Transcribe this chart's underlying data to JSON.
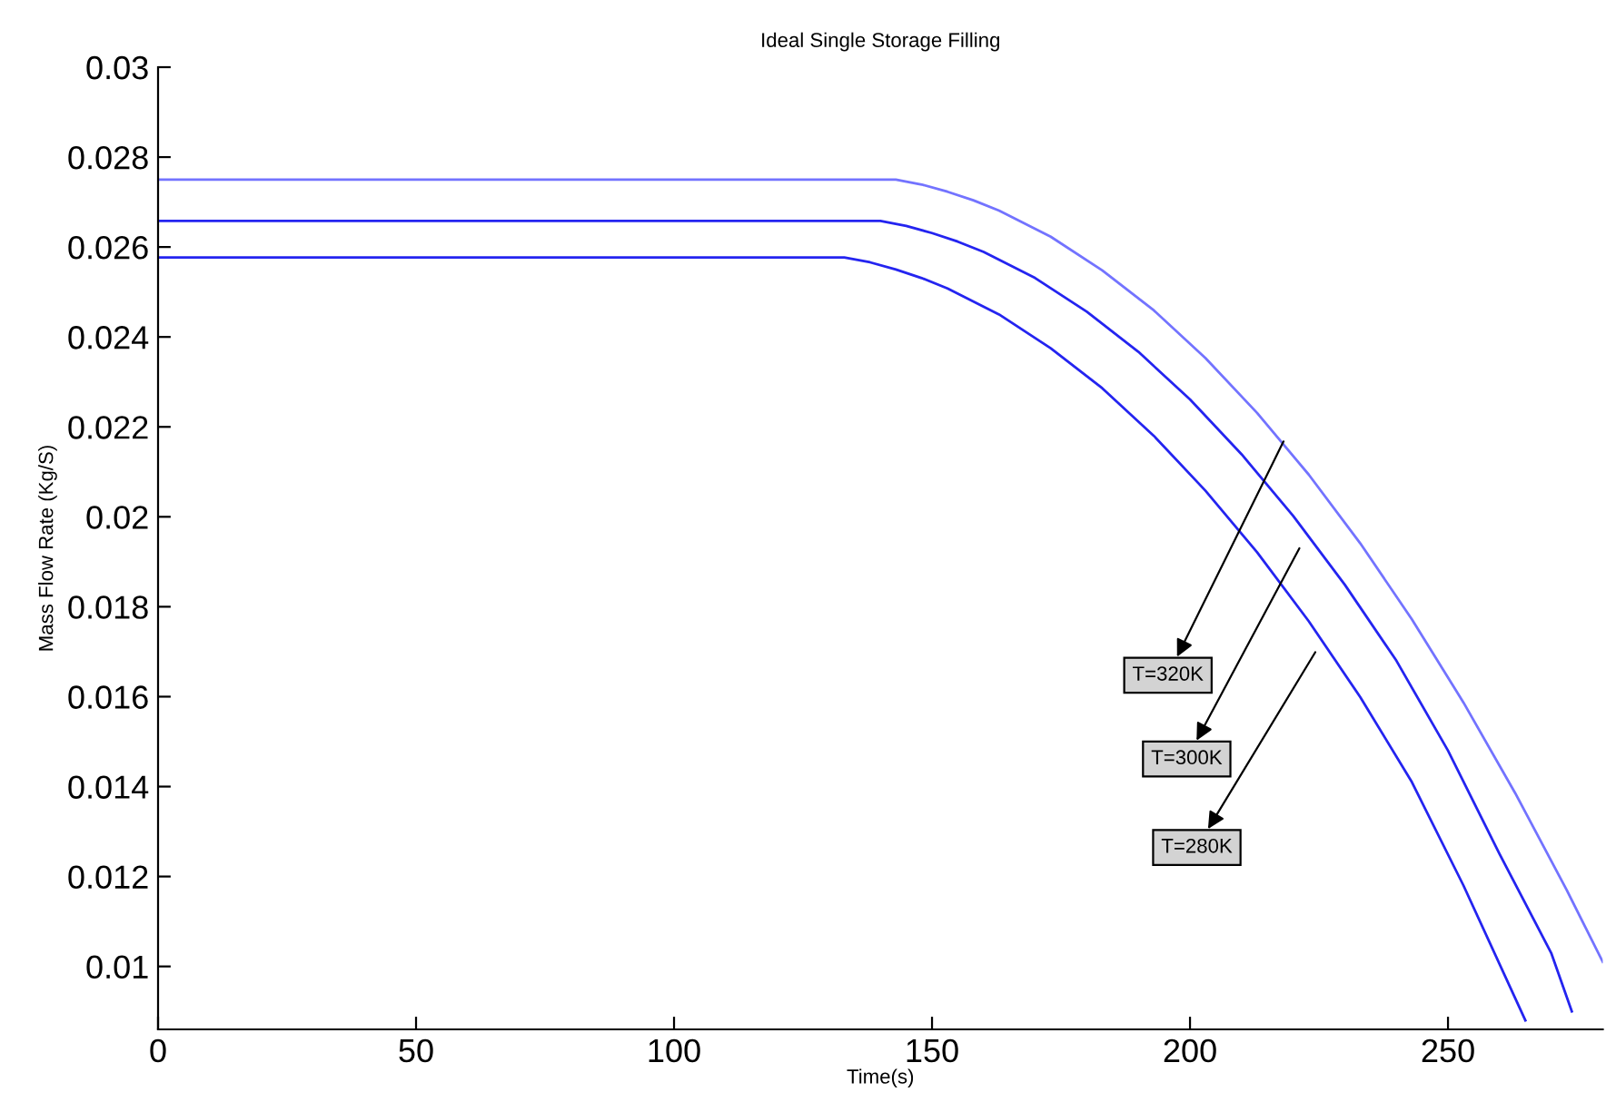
{
  "chart_data": {
    "type": "line",
    "title": "Ideal Single Storage Filling",
    "xlabel": "Time(s)",
    "ylabel": "Mass Flow Rate (Kg/S)",
    "xlim": [
      0,
      280
    ],
    "ylim": [
      0.0086,
      0.03
    ],
    "xticks": [
      0,
      50,
      100,
      150,
      200,
      250
    ],
    "yticks": [
      0.01,
      0.012,
      0.014,
      0.016,
      0.018,
      0.02,
      0.022,
      0.024,
      0.026,
      0.028,
      0.03
    ],
    "grid": false,
    "legend": false,
    "marker": "none",
    "line_style": "solid",
    "series": [
      {
        "color": "#7373ff",
        "x": [
          0,
          143,
          148,
          153,
          158,
          163,
          173,
          183,
          193,
          203,
          213,
          223,
          233,
          243,
          253,
          263,
          273,
          280
        ],
        "values": [
          0.0275,
          0.0275,
          0.02739,
          0.02723,
          0.02704,
          0.02681,
          0.02623,
          0.02548,
          0.02459,
          0.02353,
          0.02231,
          0.02094,
          0.01941,
          0.01772,
          0.01587,
          0.01386,
          0.0117,
          0.0101
        ]
      },
      {
        "color": "#2424f0",
        "x": [
          0,
          140,
          145,
          150,
          155,
          160,
          170,
          180,
          190,
          200,
          210,
          220,
          230,
          240,
          250,
          260,
          270,
          274
        ],
        "values": [
          0.02658,
          0.02658,
          0.02647,
          0.02631,
          0.02612,
          0.02589,
          0.02531,
          0.02456,
          0.02367,
          0.02261,
          0.02139,
          0.02002,
          0.01849,
          0.0168,
          0.0148,
          0.0125,
          0.0103,
          0.009
        ]
      },
      {
        "color": "#2424f0",
        "x": [
          0,
          133,
          138,
          143,
          148,
          153,
          163,
          173,
          183,
          193,
          203,
          213,
          223,
          233,
          243,
          253,
          265
        ],
        "values": [
          0.02577,
          0.02577,
          0.02566,
          0.0255,
          0.02531,
          0.02508,
          0.0245,
          0.02375,
          0.02286,
          0.0218,
          0.02058,
          0.01921,
          0.01768,
          0.01599,
          0.0141,
          0.0118,
          0.0088
        ]
      }
    ],
    "annotations": [
      "T=320K",
      "T=300K",
      "T=280K"
    ]
  }
}
